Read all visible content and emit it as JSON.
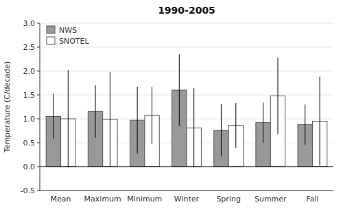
{
  "chart_data": {
    "type": "bar",
    "title": "1990-2005",
    "ylabel": "Temperature (C/decade)",
    "categories": [
      "Mean",
      "Maximum",
      "Minimum",
      "Winter",
      "Spring",
      "Summer",
      "Fall"
    ],
    "series": [
      {
        "name": "NWS",
        "color": "#999999",
        "values": [
          1.05,
          1.15,
          0.97,
          1.6,
          0.76,
          0.92,
          0.88
        ],
        "errors": [
          0.47,
          0.55,
          0.7,
          0.75,
          0.55,
          0.42,
          0.42
        ]
      },
      {
        "name": "SNOTEL",
        "color": "#ffffff",
        "values": [
          1.0,
          0.99,
          1.07,
          0.81,
          0.86,
          1.48,
          0.95
        ],
        "errors": [
          1.02,
          0.99,
          0.6,
          0.83,
          0.47,
          0.8,
          0.93
        ]
      }
    ],
    "ylim": [
      -0.5,
      3.0
    ],
    "yticks": [
      -0.5,
      {
        "value": 0.0,
        "label": "0.0"
      },
      0.5,
      {
        "value": 1.0,
        "label": "1.0"
      },
      1.5,
      {
        "value": 2.0,
        "label": "2.0"
      },
      2.5,
      {
        "value": 3.0,
        "label": "3.0"
      }
    ],
    "legend": "upper left"
  }
}
